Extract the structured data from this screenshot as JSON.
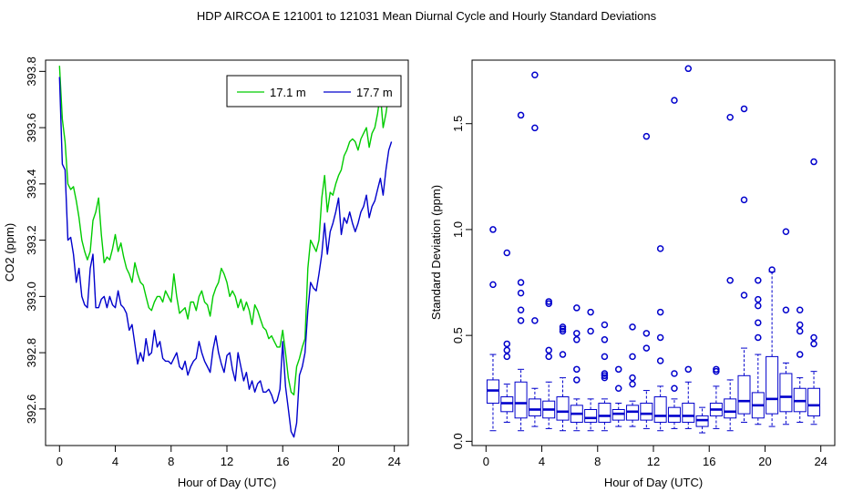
{
  "title": "HDP   AIRCOA E   121001 to 121031   Mean Diurnal Cycle and Hourly Standard Deviations",
  "chart_data": [
    {
      "type": "line",
      "xlabel": "Hour of Day (UTC)",
      "ylabel": "CO2 (ppm)",
      "xlim": [
        -1,
        25
      ],
      "ylim": [
        392.47,
        393.84
      ],
      "xticks": [
        "0",
        "4",
        "8",
        "12",
        "16",
        "20",
        "24"
      ],
      "yticks": [
        "392.6",
        "392.8",
        "393.0",
        "393.2",
        "393.4",
        "393.6",
        "393.8"
      ],
      "legend": "top-right",
      "series": [
        {
          "name": "17.1 m",
          "color": "#00cc00",
          "x": [
            0,
            0.2,
            0.4,
            0.6,
            0.8,
            1.0,
            1.2,
            1.4,
            1.6,
            1.8,
            2.0,
            2.2,
            2.4,
            2.6,
            2.8,
            3.0,
            3.2,
            3.4,
            3.6,
            3.8,
            4.0,
            4.2,
            4.4,
            4.6,
            4.8,
            5.0,
            5.2,
            5.4,
            5.6,
            5.8,
            6.0,
            6.2,
            6.4,
            6.6,
            6.8,
            7.0,
            7.2,
            7.4,
            7.6,
            7.8,
            8.0,
            8.2,
            8.4,
            8.6,
            8.8,
            9.0,
            9.2,
            9.4,
            9.6,
            9.8,
            10.0,
            10.2,
            10.4,
            10.6,
            10.8,
            11.0,
            11.2,
            11.4,
            11.6,
            11.8,
            12.0,
            12.2,
            12.4,
            12.6,
            12.8,
            13.0,
            13.2,
            13.4,
            13.6,
            13.8,
            14.0,
            14.2,
            14.4,
            14.6,
            14.8,
            15.0,
            15.2,
            15.4,
            15.6,
            15.8,
            16.0,
            16.2,
            16.4,
            16.6,
            16.8,
            17.0,
            17.2,
            17.4,
            17.6,
            17.8,
            18.0,
            18.2,
            18.4,
            18.6,
            18.8,
            19.0,
            19.2,
            19.4,
            19.6,
            19.8,
            20.0,
            20.2,
            20.4,
            20.6,
            20.8,
            21.0,
            21.2,
            21.4,
            21.6,
            21.8,
            22.0,
            22.2,
            22.4,
            22.6,
            22.8,
            23.0,
            23.2,
            23.4,
            23.6,
            23.8
          ],
          "y": [
            393.82,
            393.63,
            393.55,
            393.4,
            393.38,
            393.39,
            393.34,
            393.28,
            393.2,
            393.16,
            393.13,
            393.16,
            393.27,
            393.3,
            393.35,
            393.22,
            393.12,
            393.14,
            393.13,
            393.17,
            393.22,
            393.16,
            393.19,
            393.14,
            393.1,
            393.08,
            393.05,
            393.12,
            393.08,
            393.05,
            393.04,
            393.0,
            392.96,
            392.95,
            392.98,
            393.0,
            393.0,
            392.98,
            393.02,
            393.0,
            392.98,
            393.08,
            393.0,
            392.94,
            392.95,
            392.96,
            392.92,
            392.98,
            392.98,
            392.95,
            393.0,
            393.02,
            392.98,
            392.97,
            392.93,
            393.0,
            393.03,
            393.05,
            393.1,
            393.08,
            393.05,
            393.0,
            393.02,
            393.0,
            392.96,
            392.99,
            392.95,
            392.98,
            392.95,
            392.9,
            392.97,
            392.95,
            392.92,
            392.89,
            392.88,
            392.85,
            392.86,
            392.84,
            392.82,
            392.82,
            392.88,
            392.8,
            392.71,
            392.66,
            392.65,
            392.75,
            392.78,
            392.82,
            392.85,
            393.1,
            393.2,
            393.18,
            393.16,
            393.2,
            393.35,
            393.43,
            393.3,
            393.37,
            393.36,
            393.4,
            393.43,
            393.45,
            393.5,
            393.52,
            393.55,
            393.56,
            393.55,
            393.52,
            393.56,
            393.58,
            393.6,
            393.53,
            393.58,
            393.6,
            393.65,
            393.72,
            393.6,
            393.65,
            393.72,
            393.74
          ],
          "note": "series values estimated from plot"
        },
        {
          "name": "17.7 m",
          "color": "#0000cc",
          "x": [
            0,
            0.2,
            0.4,
            0.6,
            0.8,
            1.0,
            1.2,
            1.4,
            1.6,
            1.8,
            2.0,
            2.2,
            2.4,
            2.6,
            2.8,
            3.0,
            3.2,
            3.4,
            3.6,
            3.8,
            4.0,
            4.2,
            4.4,
            4.6,
            4.8,
            5.0,
            5.2,
            5.4,
            5.6,
            5.8,
            6.0,
            6.2,
            6.4,
            6.6,
            6.8,
            7.0,
            7.2,
            7.4,
            7.6,
            7.8,
            8.0,
            8.2,
            8.4,
            8.6,
            8.8,
            9.0,
            9.2,
            9.4,
            9.6,
            9.8,
            10.0,
            10.2,
            10.4,
            10.6,
            10.8,
            11.0,
            11.2,
            11.4,
            11.6,
            11.8,
            12.0,
            12.2,
            12.4,
            12.6,
            12.8,
            13.0,
            13.2,
            13.4,
            13.6,
            13.8,
            14.0,
            14.2,
            14.4,
            14.6,
            14.8,
            15.0,
            15.2,
            15.4,
            15.6,
            15.8,
            16.0,
            16.2,
            16.4,
            16.6,
            16.8,
            17.0,
            17.2,
            17.4,
            17.6,
            17.8,
            18.0,
            18.2,
            18.4,
            18.6,
            18.8,
            19.0,
            19.2,
            19.4,
            19.6,
            19.8,
            20.0,
            20.2,
            20.4,
            20.6,
            20.8,
            21.0,
            21.2,
            21.4,
            21.6,
            21.8,
            22.0,
            22.2,
            22.4,
            22.6,
            22.8,
            23.0,
            23.2,
            23.4,
            23.6,
            23.8
          ],
          "y": [
            393.78,
            393.47,
            393.45,
            393.2,
            393.21,
            393.15,
            393.05,
            393.1,
            393.0,
            392.97,
            392.96,
            393.1,
            393.15,
            392.96,
            392.96,
            392.99,
            393.0,
            392.96,
            393.0,
            392.97,
            392.96,
            393.02,
            392.97,
            392.96,
            392.94,
            392.88,
            392.9,
            392.83,
            392.76,
            392.8,
            392.77,
            392.85,
            392.79,
            392.8,
            392.88,
            392.82,
            392.84,
            392.78,
            392.77,
            392.77,
            392.76,
            392.78,
            392.8,
            392.75,
            392.74,
            392.77,
            392.72,
            392.75,
            392.77,
            392.78,
            392.84,
            392.8,
            392.77,
            392.75,
            392.73,
            392.81,
            392.86,
            392.8,
            392.76,
            392.73,
            392.79,
            392.8,
            392.74,
            392.7,
            392.8,
            392.75,
            392.7,
            392.73,
            392.67,
            392.7,
            392.66,
            392.69,
            392.7,
            392.66,
            392.66,
            392.67,
            392.65,
            392.62,
            392.63,
            392.67,
            392.84,
            392.68,
            392.6,
            392.52,
            392.5,
            392.55,
            392.72,
            392.75,
            392.8,
            392.95,
            393.05,
            393.03,
            393.02,
            393.08,
            393.15,
            393.26,
            393.15,
            393.23,
            393.26,
            393.3,
            393.35,
            393.22,
            393.28,
            393.26,
            393.3,
            393.26,
            393.23,
            393.26,
            393.3,
            393.32,
            393.36,
            393.28,
            393.32,
            393.34,
            393.38,
            393.42,
            393.36,
            393.45,
            393.52,
            393.55
          ],
          "note": "series values estimated from plot"
        }
      ]
    },
    {
      "type": "box",
      "xlabel": "Hour of Day (UTC)",
      "ylabel": "Standard Deviation (ppm)",
      "xlim": [
        -1,
        25
      ],
      "ylim": [
        -0.02,
        1.8
      ],
      "xticks": [
        "0",
        "4",
        "8",
        "12",
        "16",
        "20",
        "24"
      ],
      "yticks": [
        "0.0",
        "0.5",
        "1.0",
        "1.5"
      ],
      "color": "#0000cc",
      "boxes": [
        {
          "x": 0.5,
          "lo": 0.05,
          "q1": 0.18,
          "med": 0.24,
          "q3": 0.29,
          "hi": 0.41,
          "out": [
            0.74,
            1.0
          ]
        },
        {
          "x": 1.5,
          "lo": 0.09,
          "q1": 0.14,
          "med": 0.18,
          "q3": 0.21,
          "hi": 0.27,
          "out": [
            0.4,
            0.43,
            0.46,
            0.89
          ]
        },
        {
          "x": 2.5,
          "lo": 0.05,
          "q1": 0.11,
          "med": 0.18,
          "q3": 0.28,
          "hi": 0.34,
          "out": [
            0.57,
            0.62,
            0.7,
            0.75,
            1.54
          ]
        },
        {
          "x": 3.5,
          "lo": 0.07,
          "q1": 0.12,
          "med": 0.15,
          "q3": 0.2,
          "hi": 0.25,
          "out": [
            0.57,
            1.48,
            1.73
          ]
        },
        {
          "x": 4.5,
          "lo": 0.06,
          "q1": 0.11,
          "med": 0.15,
          "q3": 0.19,
          "hi": 0.28,
          "out": [
            0.4,
            0.43,
            0.65,
            0.66
          ]
        },
        {
          "x": 5.5,
          "lo": 0.05,
          "q1": 0.1,
          "med": 0.14,
          "q3": 0.21,
          "hi": 0.3,
          "out": [
            0.41,
            0.52,
            0.53,
            0.54
          ]
        },
        {
          "x": 6.5,
          "lo": 0.05,
          "q1": 0.09,
          "med": 0.13,
          "q3": 0.17,
          "hi": 0.2,
          "out": [
            0.29,
            0.34,
            0.48,
            0.51,
            0.63
          ]
        },
        {
          "x": 7.5,
          "lo": 0.05,
          "q1": 0.09,
          "med": 0.11,
          "q3": 0.15,
          "hi": 0.2,
          "out": [
            0.52,
            0.61
          ]
        },
        {
          "x": 8.5,
          "lo": 0.05,
          "q1": 0.09,
          "med": 0.12,
          "q3": 0.18,
          "hi": 0.2,
          "out": [
            0.3,
            0.31,
            0.32,
            0.4,
            0.48,
            0.55
          ]
        },
        {
          "x": 9.5,
          "lo": 0.07,
          "q1": 0.1,
          "med": 0.13,
          "q3": 0.15,
          "hi": 0.18,
          "out": [
            0.25,
            0.34
          ]
        },
        {
          "x": 10.5,
          "lo": 0.07,
          "q1": 0.1,
          "med": 0.14,
          "q3": 0.17,
          "hi": 0.19,
          "out": [
            0.27,
            0.3,
            0.4,
            0.54
          ]
        },
        {
          "x": 11.5,
          "lo": 0.06,
          "q1": 0.1,
          "med": 0.13,
          "q3": 0.18,
          "hi": 0.24,
          "out": [
            0.44,
            0.51,
            1.44
          ]
        },
        {
          "x": 12.5,
          "lo": 0.05,
          "q1": 0.09,
          "med": 0.12,
          "q3": 0.21,
          "hi": 0.26,
          "out": [
            0.38,
            0.49,
            0.61,
            0.91
          ]
        },
        {
          "x": 13.5,
          "lo": 0.06,
          "q1": 0.09,
          "med": 0.12,
          "q3": 0.16,
          "hi": 0.2,
          "out": [
            0.25,
            0.32,
            1.61
          ]
        },
        {
          "x": 14.5,
          "lo": 0.06,
          "q1": 0.09,
          "med": 0.12,
          "q3": 0.18,
          "hi": 0.28,
          "out": [
            0.34,
            1.76
          ]
        },
        {
          "x": 15.5,
          "lo": 0.04,
          "q1": 0.07,
          "med": 0.1,
          "q3": 0.12,
          "hi": 0.16,
          "out": []
        },
        {
          "x": 16.5,
          "lo": 0.06,
          "q1": 0.12,
          "med": 0.15,
          "q3": 0.18,
          "hi": 0.26,
          "out": [
            0.33,
            0.34
          ]
        },
        {
          "x": 17.5,
          "lo": 0.05,
          "q1": 0.11,
          "med": 0.14,
          "q3": 0.2,
          "hi": 0.29,
          "out": [
            0.76,
            1.53
          ]
        },
        {
          "x": 18.5,
          "lo": 0.09,
          "q1": 0.13,
          "med": 0.19,
          "q3": 0.31,
          "hi": 0.44,
          "out": [
            0.69,
            1.14,
            1.57
          ]
        },
        {
          "x": 19.5,
          "lo": 0.08,
          "q1": 0.11,
          "med": 0.17,
          "q3": 0.23,
          "hi": 0.41,
          "out": [
            0.49,
            0.56,
            0.64,
            0.67,
            0.76
          ]
        },
        {
          "x": 20.5,
          "lo": 0.07,
          "q1": 0.13,
          "med": 0.2,
          "q3": 0.4,
          "hi": 0.8,
          "out": [
            0.81
          ]
        },
        {
          "x": 21.5,
          "lo": 0.08,
          "q1": 0.14,
          "med": 0.21,
          "q3": 0.32,
          "hi": 0.37,
          "out": [
            0.62,
            0.99
          ]
        },
        {
          "x": 22.5,
          "lo": 0.09,
          "q1": 0.14,
          "med": 0.19,
          "q3": 0.25,
          "hi": 0.3,
          "out": [
            0.41,
            0.52,
            0.55,
            0.62
          ]
        },
        {
          "x": 23.5,
          "lo": 0.08,
          "q1": 0.12,
          "med": 0.17,
          "q3": 0.25,
          "hi": 0.33,
          "out": [
            0.46,
            0.49,
            1.32
          ]
        }
      ]
    }
  ]
}
